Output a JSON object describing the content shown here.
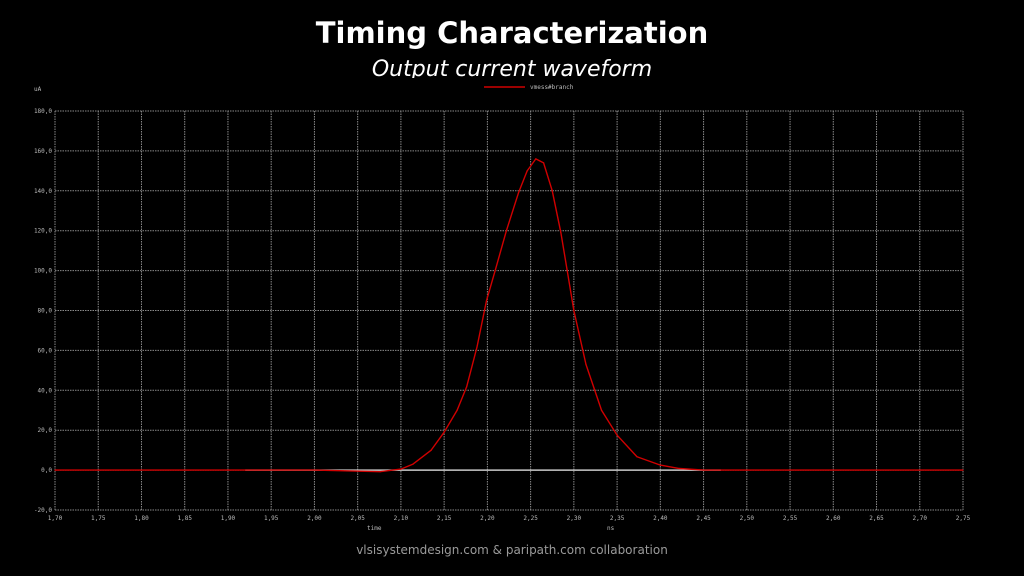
{
  "header": {
    "title": "Timing Characterization",
    "subtitle": "Output current waveform"
  },
  "footer": {
    "text": "vlsisystemdesign.com & paripath.com collaboration"
  },
  "chart_data": {
    "type": "line",
    "title": "Output current waveform",
    "xlabel": "time",
    "xunit": "ns",
    "ylabel": "uA",
    "xlim": [
      1.7,
      2.75
    ],
    "ylim": [
      -20,
      180
    ],
    "xticks": [
      "1,70",
      "1,75",
      "1,80",
      "1,85",
      "1,90",
      "1,95",
      "2,00",
      "2,05",
      "2,10",
      "2,15",
      "2,20",
      "2,25",
      "2,30",
      "2,35",
      "2,40",
      "2,45",
      "2,50",
      "2,55",
      "2,60",
      "2,65",
      "2,70",
      "2,75"
    ],
    "yticks": [
      "-20,0",
      "0,0",
      "20,0",
      "40,0",
      "60,0",
      "80,0",
      "100,0",
      "120,0",
      "140,0",
      "160,0",
      "180,0"
    ],
    "grid": true,
    "legend": "top-center",
    "colors": {
      "series": "#d00000",
      "baseline": "#c8c8c8",
      "grid": "#8a8a8a"
    },
    "series": [
      {
        "name": "vmess#branch",
        "x": [
          1.7,
          2.0,
          2.076,
          2.1,
          2.114,
          2.135,
          2.15,
          2.165,
          2.176,
          2.188,
          2.199,
          2.209,
          2.222,
          2.236,
          2.246,
          2.256,
          2.265,
          2.275,
          2.285,
          2.3,
          2.314,
          2.332,
          2.35,
          2.373,
          2.4,
          2.422,
          2.45,
          2.75
        ],
        "y": [
          0,
          0,
          -0.8,
          0.5,
          3,
          10,
          19,
          30,
          41.7,
          61.7,
          85,
          100,
          120,
          139,
          150,
          156,
          154,
          140,
          119,
          80,
          53,
          30,
          17.5,
          6.7,
          2.5,
          0.8,
          0,
          0
        ]
      },
      {
        "name": "",
        "x": [
          1.92,
          2.47
        ],
        "y": [
          0,
          0
        ]
      }
    ]
  }
}
